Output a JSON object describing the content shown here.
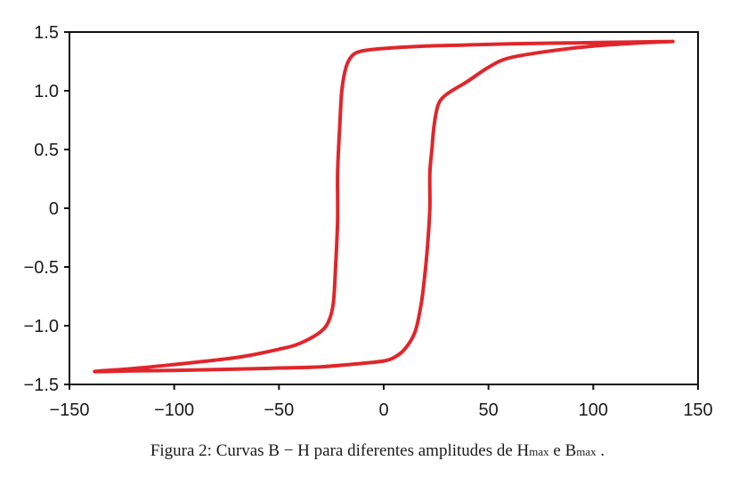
{
  "chart_data": {
    "type": "line",
    "title": "",
    "xlabel": "",
    "ylabel": "",
    "xlim": [
      -150,
      150
    ],
    "ylim": [
      -1.5,
      1.5
    ],
    "grid": false,
    "x_ticks": [
      -150,
      -100,
      -50,
      0,
      50,
      100,
      150
    ],
    "x_tick_labels": [
      "−150",
      "−100",
      "−50",
      "0",
      "50",
      "100",
      "150"
    ],
    "y_ticks": [
      1.5,
      1.0,
      0.5,
      0,
      -0.5,
      -1.0,
      -1.5
    ],
    "y_tick_labels": [
      "1.5",
      "1.0",
      "0.5",
      "0",
      "−0.5",
      "−1.0",
      "−1.5"
    ],
    "series": [
      {
        "color": "#e0262b",
        "x": [
          138,
          120,
          100,
          80,
          60,
          40,
          20,
          0,
          -10,
          -15,
          -18,
          -20,
          -21,
          -22,
          -22,
          -23,
          -24,
          -26,
          -30,
          -40,
          -50,
          -70,
          -100,
          -120,
          -138,
          -120,
          -100,
          -70,
          -50,
          -30,
          -10,
          0,
          5,
          10,
          15,
          18,
          20,
          21,
          22,
          22,
          23,
          24,
          26,
          30,
          40,
          50,
          60,
          80,
          100,
          120,
          138
        ],
        "y": [
          1.42,
          1.415,
          1.41,
          1.405,
          1.4,
          1.39,
          1.38,
          1.36,
          1.34,
          1.3,
          1.2,
          1.0,
          0.7,
          0.3,
          -0.1,
          -0.5,
          -0.8,
          -0.95,
          -1.05,
          -1.15,
          -1.2,
          -1.27,
          -1.33,
          -1.365,
          -1.39,
          -1.385,
          -1.38,
          -1.37,
          -1.36,
          -1.35,
          -1.32,
          -1.3,
          -1.27,
          -1.2,
          -1.05,
          -0.8,
          -0.5,
          -0.3,
          0.0,
          0.3,
          0.5,
          0.7,
          0.88,
          0.97,
          1.08,
          1.2,
          1.28,
          1.34,
          1.38,
          1.405,
          1.42
        ]
      }
    ]
  },
  "caption": {
    "prefix": "Figura 2: Curvas B − H para diferentes amplitudes de H",
    "sub1": "max",
    "mid": " e B",
    "sub2": "max",
    "suffix": " ."
  }
}
